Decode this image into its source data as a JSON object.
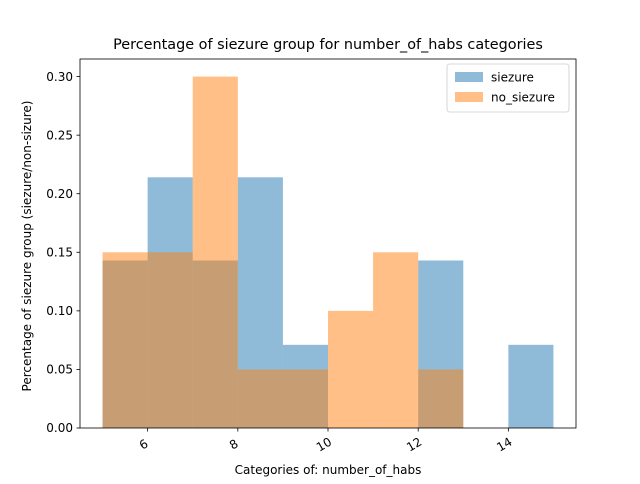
{
  "colors": {
    "siezure": "#1f77b4",
    "no_siezure": "#ff7f0e",
    "axis": "#000000",
    "background": "#ffffff"
  },
  "chart_data": {
    "type": "bar",
    "title": "Percentage of siezure group for number_of_habs categories",
    "xlabel": "Categories of: number_of_habs",
    "ylabel": "Percentage of siezure group (siezure/non-sizure)",
    "xlim": [
      4.5,
      15.5
    ],
    "ylim": [
      0,
      0.315
    ],
    "xticks": [
      6,
      8,
      10,
      12,
      14
    ],
    "xtick_labels": [
      "6",
      "8",
      "10",
      "12",
      "14"
    ],
    "yticks": [
      0.0,
      0.05,
      0.1,
      0.15,
      0.2,
      0.25,
      0.3
    ],
    "ytick_labels": [
      "0.00",
      "0.05",
      "0.10",
      "0.15",
      "0.20",
      "0.25",
      "0.30"
    ],
    "bin_edges": [
      5,
      6,
      7,
      8,
      9,
      10,
      11,
      12,
      13,
      14,
      15
    ],
    "grid": false,
    "legend_position": "top-right",
    "series": [
      {
        "name": "siezure",
        "color": "#1f77b4",
        "opacity": 0.5,
        "values": [
          0.143,
          0.214,
          0.143,
          0.214,
          0.071,
          0.0,
          0.0,
          0.143,
          0.0,
          0.071
        ]
      },
      {
        "name": "no_siezure",
        "color": "#ff7f0e",
        "opacity": 0.5,
        "values": [
          0.15,
          0.15,
          0.3,
          0.05,
          0.05,
          0.1,
          0.15,
          0.05,
          0.0,
          0.0
        ]
      }
    ]
  }
}
